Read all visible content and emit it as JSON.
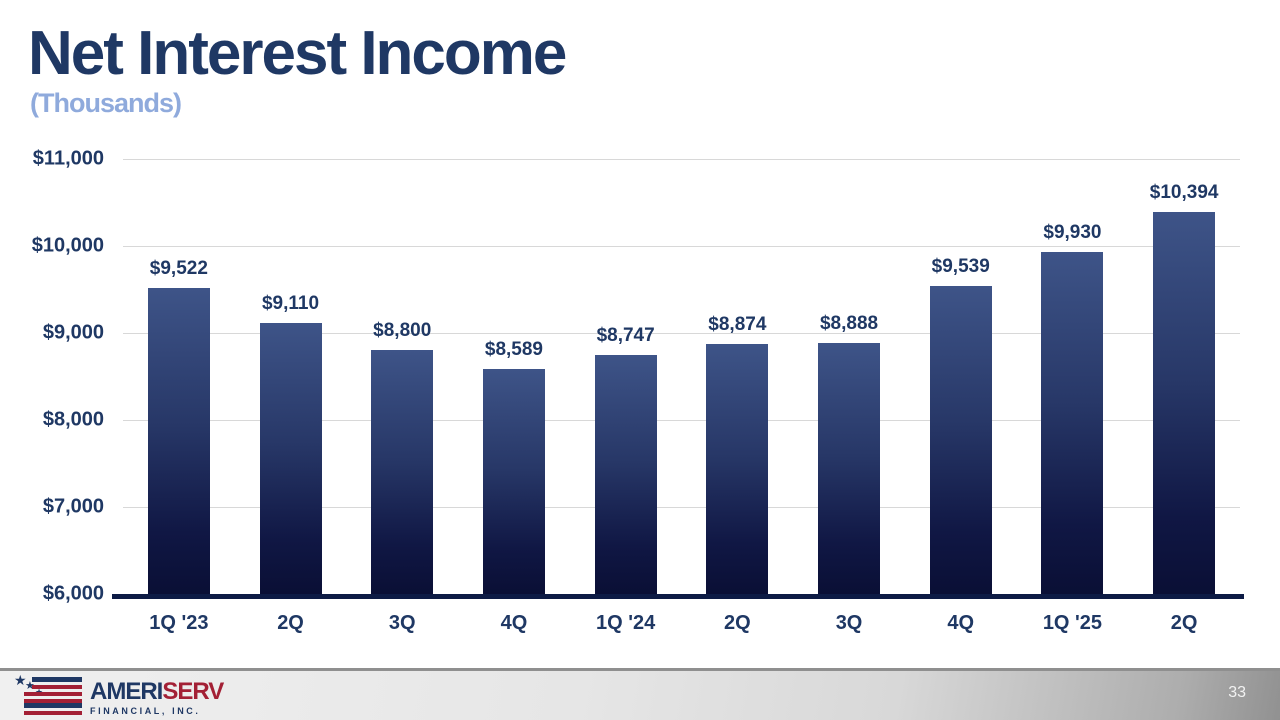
{
  "header": {
    "title": "Net Interest Income",
    "subtitle": "(Thousands)"
  },
  "chart_data": {
    "type": "bar",
    "title": "Net Interest Income (Thousands)",
    "categories": [
      "1Q '23",
      "2Q",
      "3Q",
      "4Q",
      "1Q '24",
      "2Q",
      "3Q",
      "4Q",
      "1Q '25",
      "2Q"
    ],
    "values": [
      9522,
      9110,
      8800,
      8589,
      8747,
      8874,
      8888,
      9539,
      9930,
      10394
    ],
    "data_labels": [
      "$9,522",
      "$9,110",
      "$8,800",
      "$8,589",
      "$8,747",
      "$8,874",
      "$8,888",
      "$9,539",
      "$9,930",
      "$10,394"
    ],
    "y_ticks": [
      "$11,000",
      "$10,000",
      "$9,000",
      "$8,000",
      "$7,000",
      "$6,000"
    ],
    "ylim": [
      6000,
      11000
    ],
    "xlabel": "",
    "ylabel": "",
    "grid": true,
    "legend": "none",
    "colors": {
      "bar_gradient_top": "#3E5488",
      "bar_gradient_bottom": "#0A0F35",
      "grid_line": "#D8D8D8",
      "axis_line": "#0D1B45",
      "label_text": "#1F3864"
    }
  },
  "footer": {
    "page_number": "33",
    "logo": {
      "brand_left": "AMERI",
      "brand_right": "SERV",
      "tagline": "FINANCIAL, INC.",
      "star_glyph": "★"
    },
    "colors": {
      "brand_navy": "#1F3864",
      "brand_red": "#A32035"
    }
  }
}
